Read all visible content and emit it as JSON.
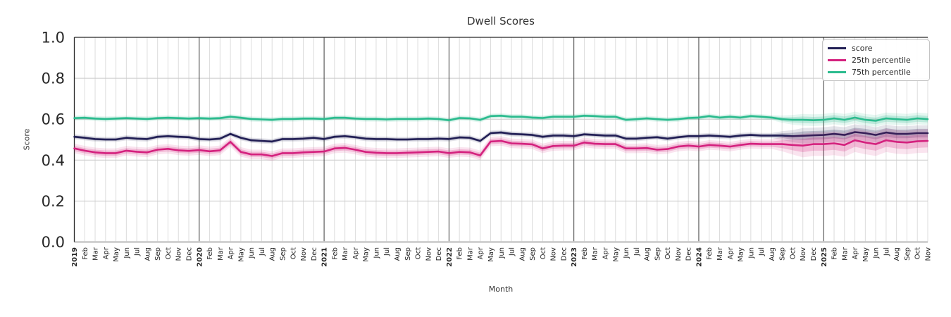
{
  "chart": {
    "title": "Dwell Scores",
    "xlabel": "Month",
    "ylabel": "Score"
  },
  "chart_data": {
    "type": "line",
    "title": "Dwell Scores",
    "xlabel": "Month",
    "ylabel": "Score",
    "ylim": [
      0.0,
      1.0
    ],
    "yticks": [
      0.0,
      0.2,
      0.4,
      0.6,
      0.8,
      1.0
    ],
    "grid": true,
    "legend_position": "upper right",
    "x_tick_labels": [
      "2019",
      "Feb",
      "Mar",
      "Apr",
      "May",
      "Jun",
      "Jul",
      "Aug",
      "Sep",
      "Oct",
      "Nov",
      "Dec",
      "2020",
      "Feb",
      "Mar",
      "Apr",
      "May",
      "Jun",
      "Jul",
      "Aug",
      "Sep",
      "Oct",
      "Nov",
      "Dec",
      "2021",
      "Feb",
      "Mar",
      "Apr",
      "May",
      "Jun",
      "Jul",
      "Aug",
      "Sep",
      "Oct",
      "Nov",
      "Dec",
      "2022",
      "Feb",
      "Mar",
      "Apr",
      "May",
      "Jun",
      "Jul",
      "Aug",
      "Sep",
      "Oct",
      "Nov",
      "Dec",
      "2023",
      "Feb",
      "Mar",
      "Apr",
      "May",
      "Jun",
      "Jul",
      "Aug",
      "Sep",
      "Oct",
      "Nov",
      "Dec",
      "2024",
      "Feb",
      "Mar",
      "Apr",
      "May",
      "Jun",
      "Jul",
      "Aug",
      "Sep",
      "Oct",
      "Nov",
      "Dec",
      "2025",
      "Feb",
      "Mar",
      "Apr",
      "May",
      "Jun",
      "Jul",
      "Aug",
      "Sep",
      "Oct",
      "Nov"
    ],
    "series": [
      {
        "name": "score",
        "color": "#221f55",
        "band": {
          "halfwidth": 0.007,
          "late_halfwidth": 0.021,
          "late_start_index": 70
        },
        "values": [
          0.514,
          0.509,
          0.503,
          0.501,
          0.501,
          0.509,
          0.505,
          0.503,
          0.514,
          0.517,
          0.514,
          0.512,
          0.503,
          0.501,
          0.505,
          0.528,
          0.509,
          0.497,
          0.494,
          0.491,
          0.503,
          0.503,
          0.505,
          0.509,
          0.503,
          0.514,
          0.517,
          0.512,
          0.505,
          0.503,
          0.503,
          0.501,
          0.501,
          0.503,
          0.503,
          0.505,
          0.503,
          0.511,
          0.509,
          0.494,
          0.532,
          0.535,
          0.528,
          0.526,
          0.523,
          0.514,
          0.52,
          0.52,
          0.517,
          0.526,
          0.523,
          0.52,
          0.52,
          0.505,
          0.505,
          0.509,
          0.512,
          0.505,
          0.512,
          0.517,
          0.517,
          0.52,
          0.517,
          0.514,
          0.52,
          0.523,
          0.52,
          0.52,
          0.52,
          0.517,
          0.519,
          0.521,
          0.523,
          0.528,
          0.523,
          0.537,
          0.532,
          0.523,
          0.535,
          0.528,
          0.528,
          0.532,
          0.532
        ]
      },
      {
        "name": "25th percentile",
        "color": "#d4217e",
        "band": {
          "halfwidth": 0.013,
          "late_halfwidth": 0.032,
          "late_start_index": 70
        },
        "values": [
          0.457,
          0.446,
          0.438,
          0.434,
          0.434,
          0.446,
          0.441,
          0.438,
          0.451,
          0.455,
          0.448,
          0.445,
          0.449,
          0.443,
          0.448,
          0.489,
          0.44,
          0.428,
          0.428,
          0.42,
          0.434,
          0.434,
          0.438,
          0.44,
          0.442,
          0.457,
          0.46,
          0.451,
          0.44,
          0.436,
          0.434,
          0.434,
          0.436,
          0.438,
          0.44,
          0.442,
          0.434,
          0.44,
          0.438,
          0.423,
          0.491,
          0.494,
          0.482,
          0.48,
          0.477,
          0.457,
          0.469,
          0.471,
          0.471,
          0.486,
          0.48,
          0.478,
          0.478,
          0.457,
          0.457,
          0.459,
          0.451,
          0.454,
          0.466,
          0.471,
          0.466,
          0.474,
          0.471,
          0.466,
          0.474,
          0.48,
          0.478,
          0.478,
          0.478,
          0.474,
          0.471,
          0.478,
          0.478,
          0.482,
          0.474,
          0.497,
          0.486,
          0.478,
          0.497,
          0.489,
          0.486,
          0.492,
          0.494
        ]
      },
      {
        "name": "75th percentile",
        "color": "#2bbb8e",
        "band": {
          "halfwidth": 0.007,
          "late_halfwidth": 0.016,
          "late_start_index": 70
        },
        "values": [
          0.605,
          0.607,
          0.603,
          0.601,
          0.603,
          0.605,
          0.603,
          0.601,
          0.605,
          0.607,
          0.605,
          0.603,
          0.605,
          0.603,
          0.605,
          0.612,
          0.607,
          0.601,
          0.599,
          0.597,
          0.601,
          0.601,
          0.603,
          0.603,
          0.601,
          0.607,
          0.607,
          0.603,
          0.601,
          0.601,
          0.599,
          0.601,
          0.601,
          0.601,
          0.603,
          0.601,
          0.595,
          0.606,
          0.604,
          0.597,
          0.615,
          0.617,
          0.612,
          0.612,
          0.608,
          0.606,
          0.612,
          0.612,
          0.612,
          0.617,
          0.615,
          0.612,
          0.612,
          0.597,
          0.6,
          0.604,
          0.6,
          0.597,
          0.6,
          0.606,
          0.608,
          0.615,
          0.608,
          0.612,
          0.608,
          0.615,
          0.612,
          0.608,
          0.6,
          0.597,
          0.597,
          0.595,
          0.597,
          0.604,
          0.597,
          0.608,
          0.597,
          0.592,
          0.604,
          0.6,
          0.597,
          0.604,
          0.6
        ]
      }
    ]
  }
}
